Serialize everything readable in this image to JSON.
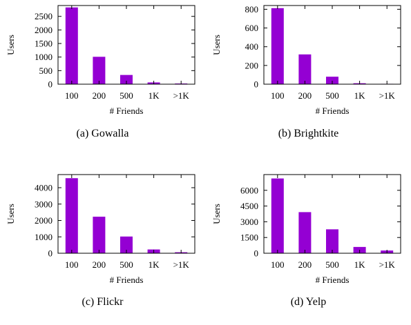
{
  "bar_color": "#9400d3",
  "chart_data": [
    {
      "type": "bar",
      "caption": "(a)  Gowalla",
      "categories": [
        "100",
        "200",
        "500",
        "1K",
        ">1K"
      ],
      "values": [
        2830,
        1010,
        340,
        65,
        25
      ],
      "xlabel": "# Friends",
      "ylabel": "Users",
      "ylim": [
        0,
        2900
      ],
      "yticks": [
        0,
        500,
        1000,
        1500,
        2000,
        2500
      ]
    },
    {
      "type": "bar",
      "caption": "(b)  Brightkite",
      "categories": [
        "100",
        "200",
        "500",
        "1K",
        ">1K"
      ],
      "values": [
        812,
        318,
        80,
        10,
        4
      ],
      "xlabel": "# Friends",
      "ylabel": "Users",
      "ylim": [
        0,
        840
      ],
      "yticks": [
        0,
        200,
        400,
        600,
        800
      ]
    },
    {
      "type": "bar",
      "caption": "(c)  Flickr",
      "categories": [
        "100",
        "200",
        "500",
        "1K",
        ">1K"
      ],
      "values": [
        4580,
        2230,
        1020,
        230,
        60
      ],
      "xlabel": "# Friends",
      "ylabel": "Users",
      "ylim": [
        0,
        4800
      ],
      "yticks": [
        0,
        1000,
        2000,
        3000,
        4000
      ]
    },
    {
      "type": "bar",
      "caption": "(d)  Yelp",
      "categories": [
        "100",
        "200",
        "500",
        "1K",
        ">1K"
      ],
      "values": [
        7130,
        3920,
        2280,
        600,
        260
      ],
      "xlabel": "# Friends",
      "ylabel": "Users",
      "ylim": [
        0,
        7500
      ],
      "yticks": [
        0,
        1500,
        3000,
        4500,
        6000
      ]
    }
  ]
}
